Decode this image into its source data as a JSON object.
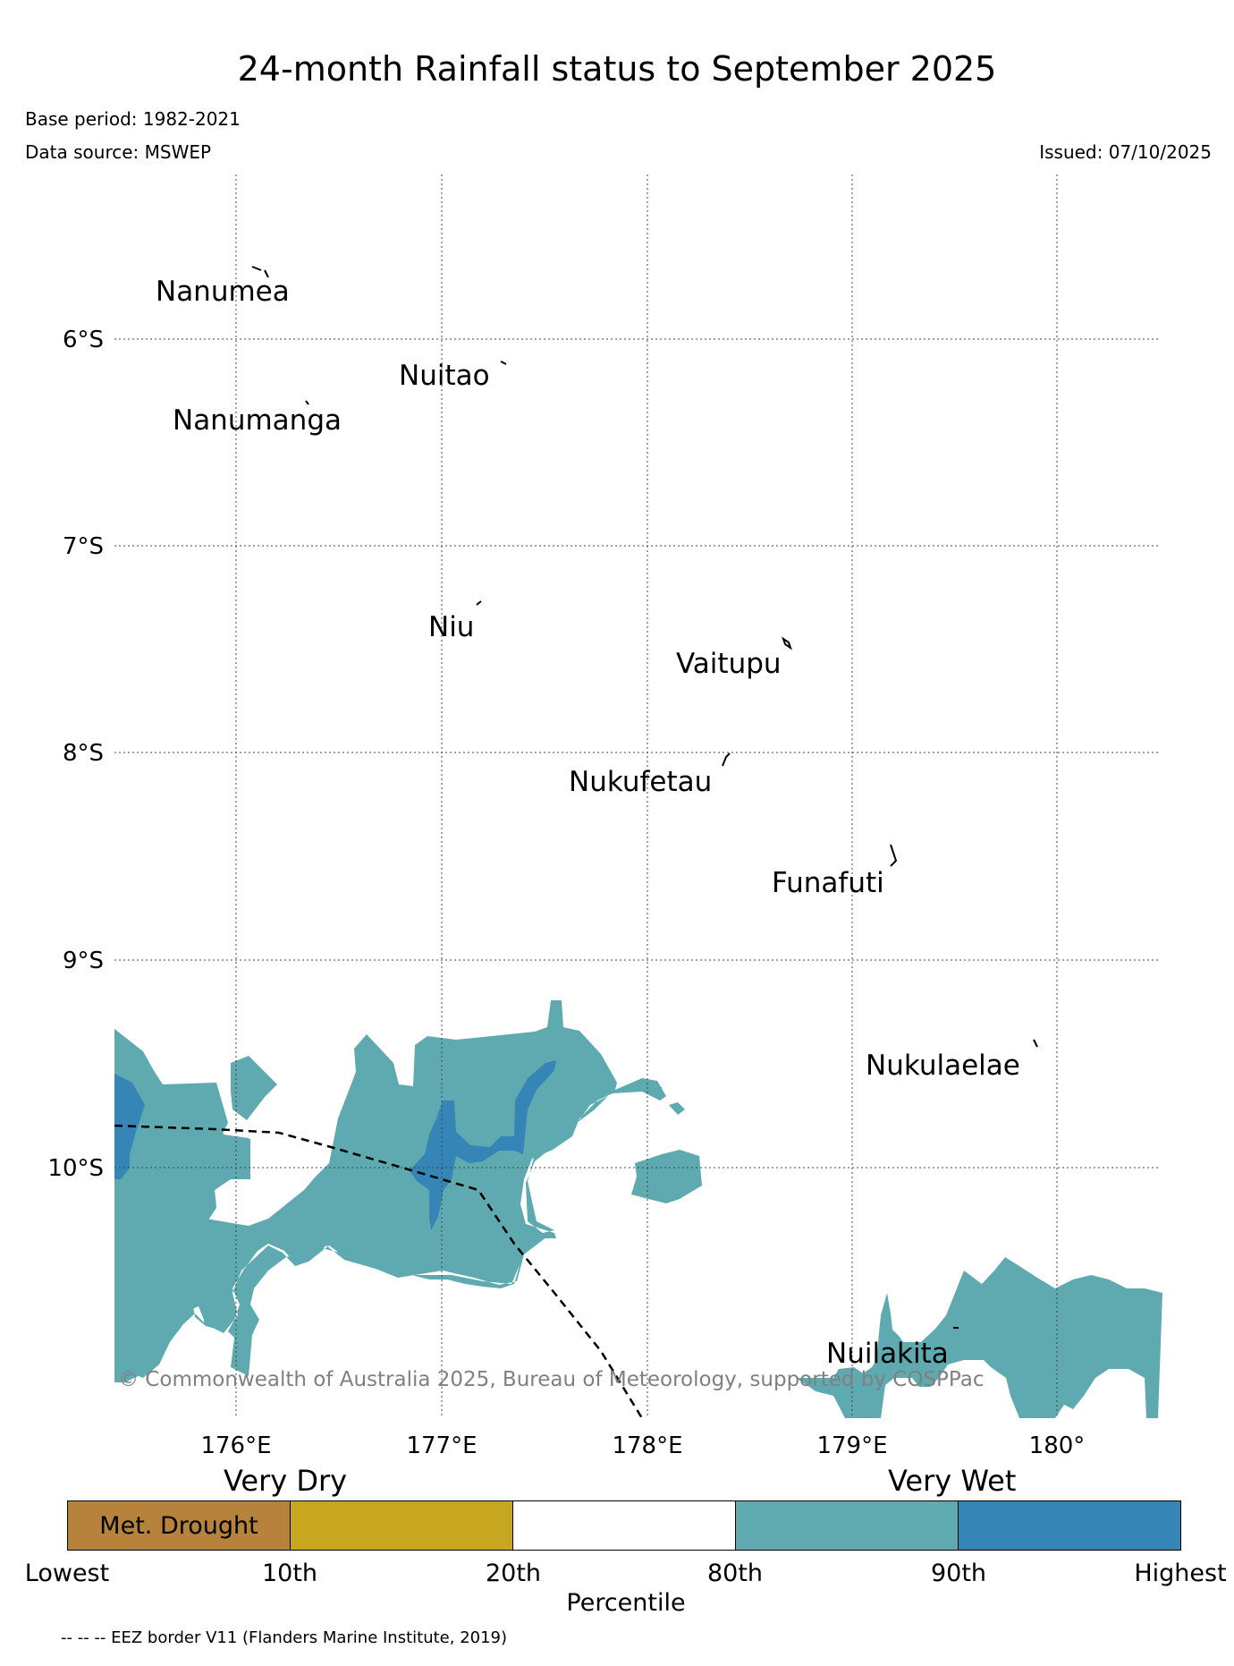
{
  "header": {
    "title": "24-month Rainfall status to September 2025",
    "base_period": "Base period: 1982-2021",
    "data_source": "Data source: MSWEP",
    "issued": "Issued: 07/10/2025"
  },
  "map": {
    "lon_ticks": [
      "176°E",
      "177°E",
      "178°E",
      "179°E",
      "180°"
    ],
    "lat_ticks": [
      "6°S",
      "7°S",
      "8°S",
      "9°S",
      "10°S"
    ],
    "islands": [
      "Nanumea",
      "Nuitao",
      "Nanumanga",
      "Niu",
      "Vaitupu",
      "Nukufetau",
      "Funafuti",
      "Nukulaelae",
      "Nuilakita"
    ],
    "copyright": "© Commonwealth of Australia 2025, Bureau of Meteorology, supported by COSPPac",
    "colors": {
      "very_wet": "#5eaab0",
      "highest": "#3585b6",
      "grid": "#444444"
    }
  },
  "legend": {
    "left_label": "Very Dry",
    "right_label": "Very Wet",
    "segments": [
      {
        "label": "Met. Drought",
        "color": "#b7823c"
      },
      {
        "label": "",
        "color": "#c8a720"
      },
      {
        "label": "",
        "color": "#ffffff"
      },
      {
        "label": "",
        "color": "#5eaab0"
      },
      {
        "label": "",
        "color": "#3585b6"
      }
    ],
    "ticks": [
      "Lowest",
      "10th",
      "20th",
      "80th",
      "90th",
      "Highest"
    ],
    "axis_label": "Percentile"
  },
  "footer": {
    "eez_note": "-- -- -- EEZ border V11 (Flanders Marine Institute, 2019)"
  }
}
